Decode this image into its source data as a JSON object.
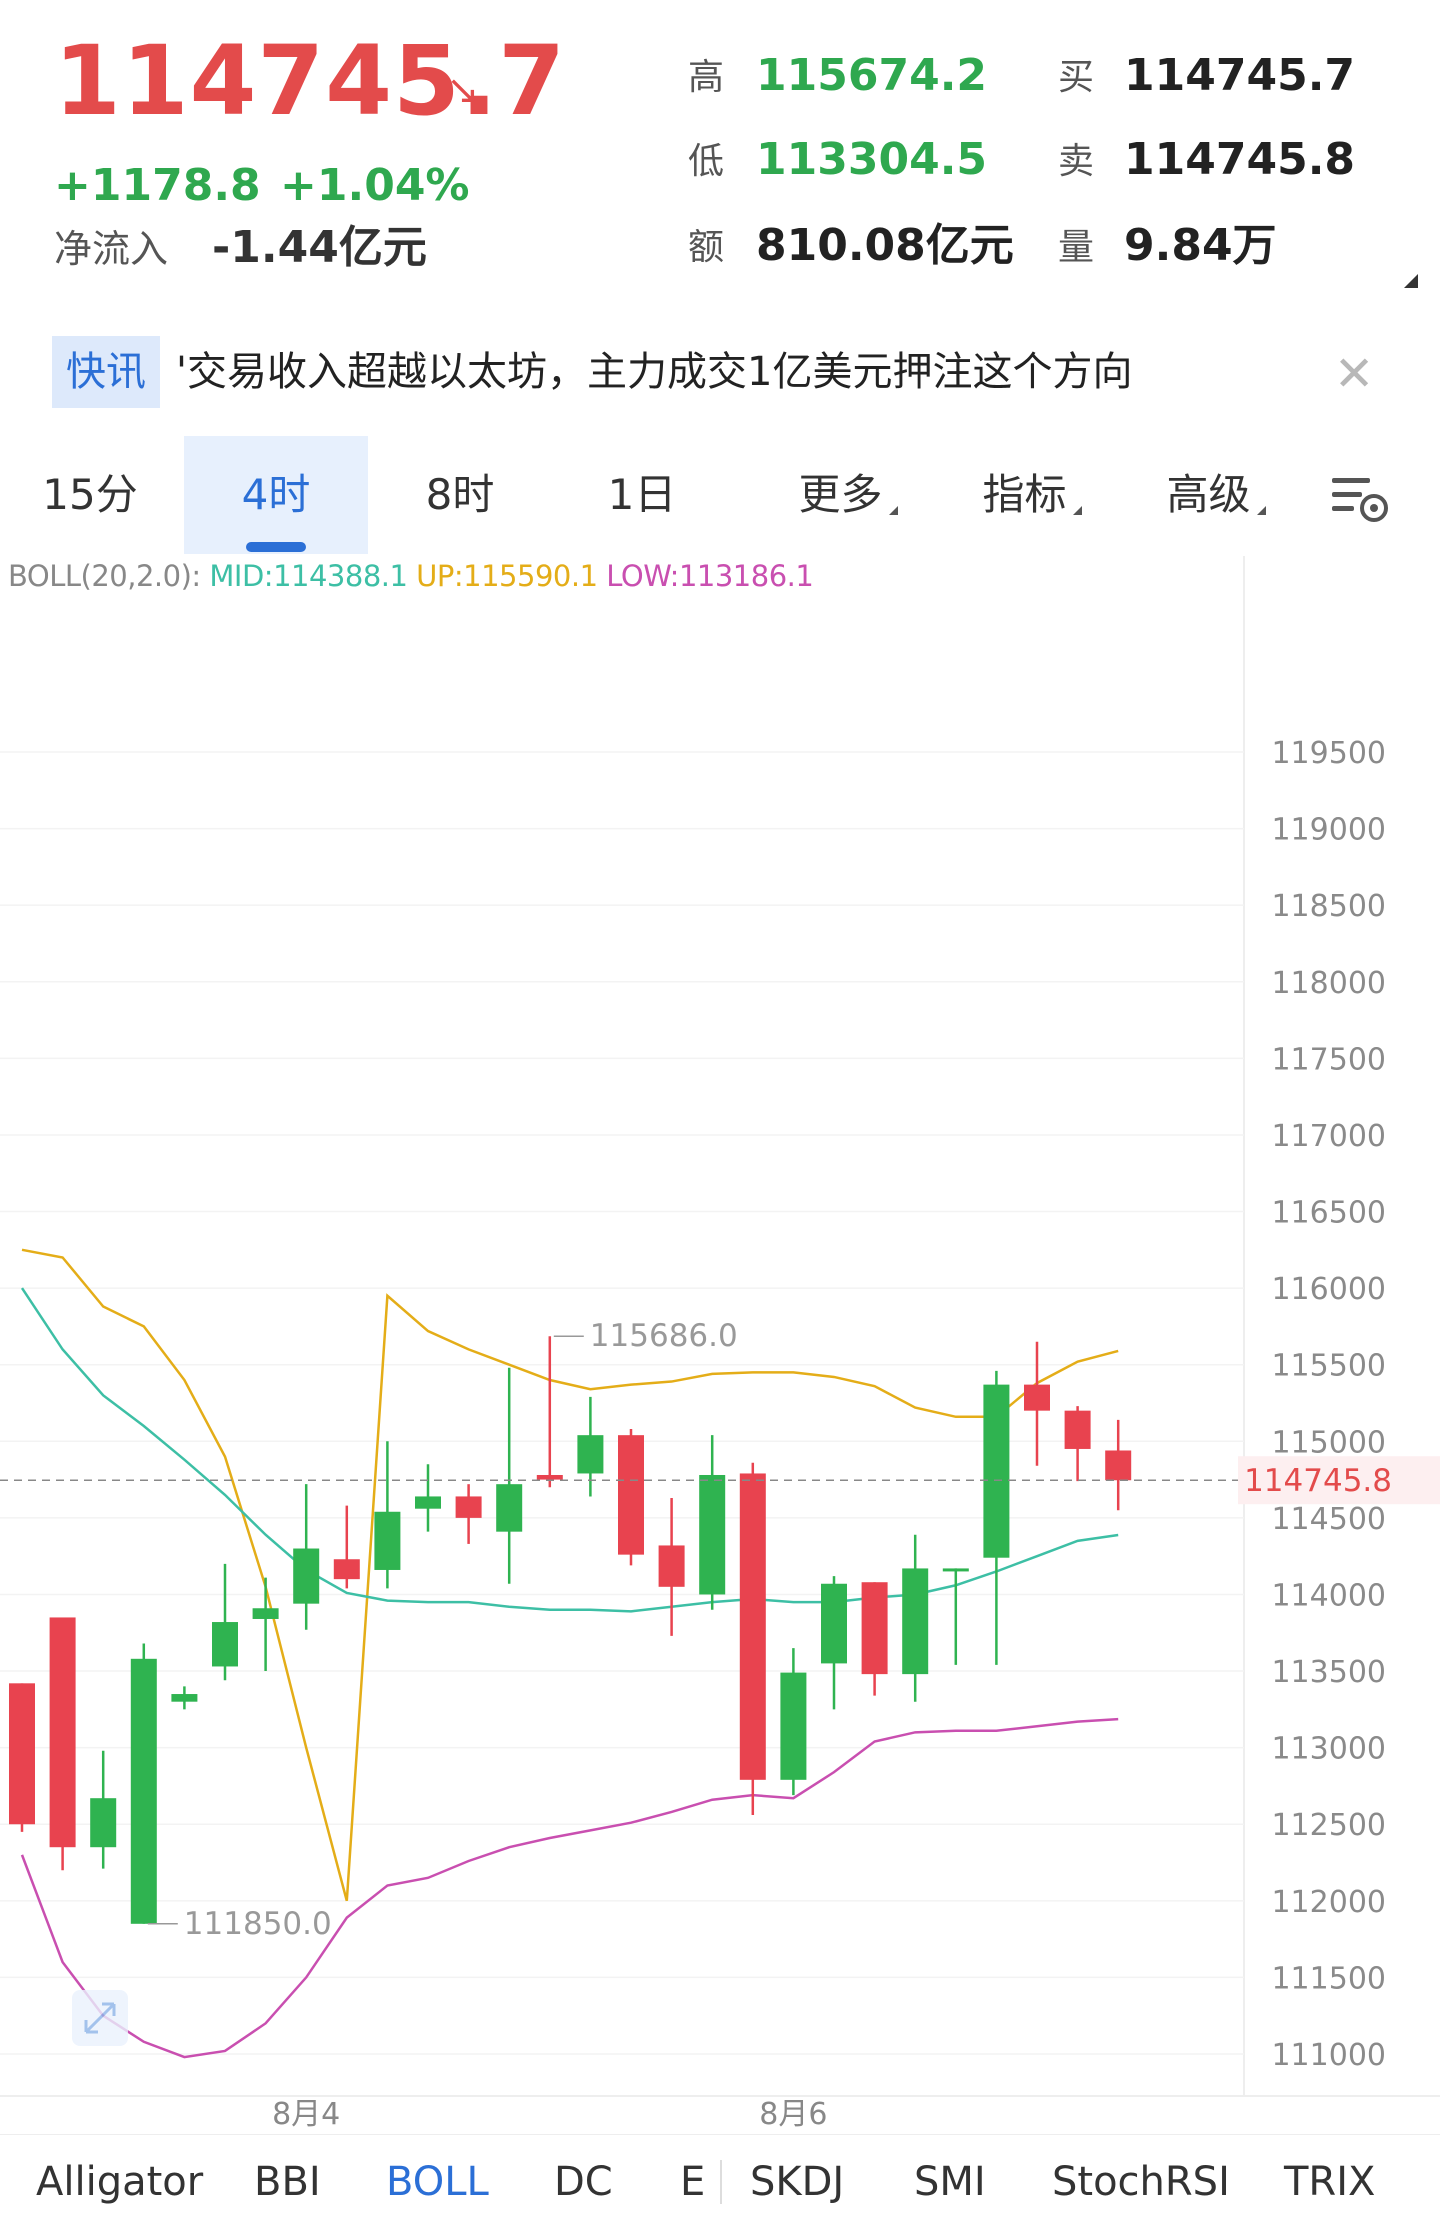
{
  "header": {
    "price": "114745.7",
    "change": "+1178.8",
    "change_pct": "+1.04%",
    "net_inflow_label": "净流入",
    "net_inflow_value": "-1.44亿元",
    "high_label": "高",
    "high_value": "115674.2",
    "low_label": "低",
    "low_value": "113304.5",
    "amount_label": "额",
    "amount_value": "810.08亿元",
    "bid_label": "买",
    "bid_value": "114745.7",
    "ask_label": "卖",
    "ask_value": "114745.8",
    "volume_label": "量",
    "volume_value": "9.84万",
    "colors": {
      "up": "#e34b4b",
      "down": "#2fa84f"
    },
    "arrow_icon": "trend-down-arrow-icon"
  },
  "news": {
    "tag": "快讯",
    "text": "'交易收入超越以太坊，主力成交1亿美元押注这个方向",
    "close_icon": "close-icon"
  },
  "timeframes": {
    "items": [
      "15分",
      "4时",
      "8时",
      "1日",
      "更多",
      "指标",
      "高级"
    ],
    "active": "4时",
    "settings_icon": "chart-settings-icon"
  },
  "boll": {
    "prefix": "BOLL(20,2.0):",
    "mid": "MID:114388.1",
    "up": "UP:115590.1",
    "low": "LOW:113186.1"
  },
  "chart_data": {
    "type": "candlestick",
    "y_ticks": [
      119500,
      119000,
      118500,
      118000,
      117500,
      117000,
      116500,
      116000,
      115500,
      115000,
      114500,
      114000,
      113500,
      113000,
      112500,
      112000,
      111500,
      111000
    ],
    "ylim": [
      110750,
      120150
    ],
    "current_price_label": "114745.8",
    "current_price": 114745.8,
    "high_annotation": "115686.0",
    "low_annotation": "111850.0",
    "x_labels": [
      "8月4",
      "8月6"
    ],
    "x_label_positions": [
      7,
      19
    ],
    "candles": [
      {
        "o": 113420,
        "h": 113420,
        "l": 112450,
        "c": 112500
      },
      {
        "o": 113850,
        "h": 113850,
        "l": 112200,
        "c": 112350
      },
      {
        "o": 112350,
        "h": 112980,
        "l": 112210,
        "c": 112670
      },
      {
        "o": 111850,
        "h": 113680,
        "l": 111850,
        "c": 113580
      },
      {
        "o": 113300,
        "h": 113400,
        "l": 113250,
        "c": 113350
      },
      {
        "o": 113530,
        "h": 114200,
        "l": 113440,
        "c": 113820
      },
      {
        "o": 113840,
        "h": 114110,
        "l": 113500,
        "c": 113910
      },
      {
        "o": 113940,
        "h": 114720,
        "l": 113770,
        "c": 114300
      },
      {
        "o": 114230,
        "h": 114580,
        "l": 114040,
        "c": 114100
      },
      {
        "o": 114160,
        "h": 115000,
        "l": 114040,
        "c": 114540
      },
      {
        "o": 114560,
        "h": 114850,
        "l": 114410,
        "c": 114640
      },
      {
        "o": 114640,
        "h": 114720,
        "l": 114330,
        "c": 114500
      },
      {
        "o": 114410,
        "h": 115480,
        "l": 114070,
        "c": 114720
      },
      {
        "o": 114780,
        "h": 115686,
        "l": 114700,
        "c": 114750
      },
      {
        "o": 114790,
        "h": 115290,
        "l": 114640,
        "c": 115040
      },
      {
        "o": 115040,
        "h": 115080,
        "l": 114190,
        "c": 114260
      },
      {
        "o": 114320,
        "h": 114630,
        "l": 113730,
        "c": 114050
      },
      {
        "o": 114000,
        "h": 115040,
        "l": 113900,
        "c": 114780
      },
      {
        "o": 114790,
        "h": 114860,
        "l": 112560,
        "c": 112790
      },
      {
        "o": 112790,
        "h": 113650,
        "l": 112690,
        "c": 113490
      },
      {
        "o": 113550,
        "h": 114120,
        "l": 113250,
        "c": 114070
      },
      {
        "o": 114080,
        "h": 114080,
        "l": 113340,
        "c": 113480
      },
      {
        "o": 113480,
        "h": 114390,
        "l": 113300,
        "c": 114170
      },
      {
        "o": 114170,
        "h": 114170,
        "l": 113540,
        "c": 114170
      },
      {
        "o": 114240,
        "h": 115460,
        "l": 113540,
        "c": 115370
      },
      {
        "o": 115370,
        "h": 115650,
        "l": 114840,
        "c": 115200
      },
      {
        "o": 115200,
        "h": 115230,
        "l": 114740,
        "c": 114950
      },
      {
        "o": 114940,
        "h": 115140,
        "l": 114550,
        "c": 114745.7
      }
    ],
    "boll_up": [
      116250,
      116200,
      115880,
      115750,
      115400,
      114900,
      114050,
      113000,
      112000,
      115950,
      115720,
      115600,
      115500,
      115400,
      115340,
      115370,
      115390,
      115440,
      115450,
      115450,
      115420,
      115360,
      115220,
      115160,
      115160,
      115380,
      115520,
      115590.1
    ],
    "boll_mid": [
      116000,
      115600,
      115300,
      115100,
      114880,
      114650,
      114390,
      114160,
      114010,
      113960,
      113950,
      113950,
      113920,
      113900,
      113900,
      113890,
      113920,
      113950,
      113970,
      113950,
      113950,
      113980,
      114000,
      114060,
      114150,
      114250,
      114350,
      114388.1
    ],
    "boll_low": [
      112300,
      111600,
      111250,
      111080,
      110980,
      111020,
      111200,
      111500,
      111890,
      112100,
      112150,
      112260,
      112350,
      112410,
      112460,
      112510,
      112580,
      112660,
      112690,
      112670,
      112840,
      113040,
      113100,
      113110,
      113110,
      113140,
      113170,
      113186.1
    ],
    "colors": {
      "up_candle": "#2fb350",
      "down_candle": "#e8434f",
      "mid": "#3dbfa5",
      "upper": "#e4ad18",
      "lower": "#c94fb0"
    }
  },
  "indicators": {
    "items": [
      "Alligator",
      "BBI",
      "BOLL",
      "DC",
      "E",
      "SKDJ",
      "SMI",
      "StochRSI",
      "TRIX"
    ],
    "active": "BOLL"
  },
  "expand_icon": "expand-arrows-icon"
}
